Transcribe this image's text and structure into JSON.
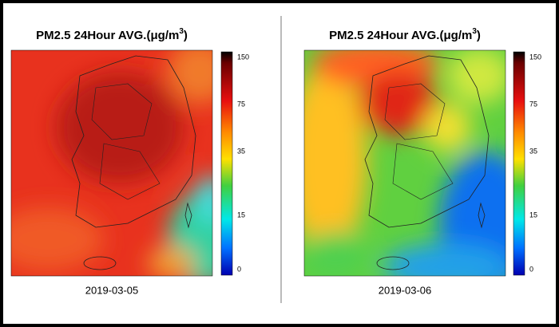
{
  "panels": [
    {
      "title": "PM2.5 24Hour AVG.(μg/m",
      "title_sup": "3",
      "title_end": ")",
      "date": "2019-03-05",
      "colorbar_ticks": [
        150,
        75,
        35,
        15,
        0
      ]
    },
    {
      "title": "PM2.5 24Hour AVG.(μg/m",
      "title_sup": "3",
      "title_end": ")",
      "date": "2019-03-06",
      "colorbar_ticks": [
        150,
        75,
        35,
        15,
        0
      ]
    }
  ]
}
